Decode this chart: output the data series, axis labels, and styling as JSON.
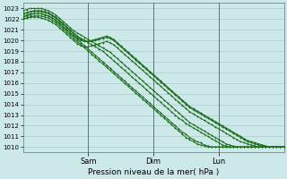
{
  "title": "",
  "xlabel": "Pression niveau de la mer( hPa )",
  "ylabel": "",
  "bg_color": "#cce8e8",
  "grid_color": "#aacccc",
  "line_color": "#1a6b1a",
  "ylim": [
    1009.5,
    1023.5
  ],
  "yticks": [
    1010,
    1011,
    1012,
    1013,
    1014,
    1015,
    1016,
    1017,
    1018,
    1019,
    1020,
    1021,
    1022,
    1023
  ],
  "day_labels": [
    "Sam",
    "Dim",
    "Lun"
  ],
  "day_positions": [
    0.25,
    0.5,
    0.75
  ],
  "n_points": 73,
  "lines": [
    [
      1022.0,
      1022.1,
      1022.2,
      1022.3,
      1022.3,
      1022.3,
      1022.2,
      1022.1,
      1021.9,
      1021.7,
      1021.4,
      1021.1,
      1020.8,
      1020.5,
      1020.2,
      1019.9,
      1019.6,
      1019.3,
      1019.0,
      1018.7,
      1018.4,
      1018.1,
      1017.8,
      1017.5,
      1017.2,
      1016.9,
      1016.6,
      1016.3,
      1016.0,
      1015.7,
      1015.4,
      1015.1,
      1014.8,
      1014.5,
      1014.2,
      1013.9,
      1013.6,
      1013.3,
      1013.0,
      1012.7,
      1012.4,
      1012.1,
      1011.8,
      1011.5,
      1011.2,
      1010.9,
      1010.7,
      1010.5,
      1010.3,
      1010.2,
      1010.1,
      1010.0,
      1010.0,
      1010.0,
      1010.0,
      1010.0,
      1010.0,
      1010.0,
      1010.0,
      1010.0,
      1010.0,
      1010.0,
      1010.0,
      1010.0,
      1010.0,
      1010.0,
      1010.0,
      1010.0,
      1010.0,
      1010.0,
      1010.0,
      1010.0,
      1010.0
    ],
    [
      1022.2,
      1022.3,
      1022.4,
      1022.5,
      1022.5,
      1022.5,
      1022.4,
      1022.3,
      1022.1,
      1021.9,
      1021.6,
      1021.3,
      1021.0,
      1020.7,
      1020.4,
      1020.1,
      1019.8,
      1019.5,
      1019.2,
      1018.9,
      1018.6,
      1018.3,
      1018.0,
      1017.7,
      1017.4,
      1017.1,
      1016.8,
      1016.5,
      1016.2,
      1015.9,
      1015.6,
      1015.3,
      1015.0,
      1014.7,
      1014.4,
      1014.1,
      1013.8,
      1013.5,
      1013.2,
      1012.9,
      1012.6,
      1012.3,
      1012.0,
      1011.7,
      1011.4,
      1011.2,
      1010.9,
      1010.7,
      1010.5,
      1010.4,
      1010.2,
      1010.1,
      1010.0,
      1010.0,
      1010.0,
      1010.0,
      1010.0,
      1010.0,
      1010.0,
      1010.0,
      1010.0,
      1010.0,
      1010.0,
      1010.0,
      1010.0,
      1010.0,
      1010.0,
      1010.0,
      1010.0,
      1010.0,
      1010.0,
      1010.0,
      1010.0
    ],
    [
      1022.5,
      1022.6,
      1022.7,
      1022.8,
      1022.8,
      1022.8,
      1022.7,
      1022.6,
      1022.4,
      1022.2,
      1021.9,
      1021.6,
      1021.3,
      1021.0,
      1020.7,
      1020.4,
      1020.2,
      1020.0,
      1019.8,
      1019.6,
      1019.4,
      1019.2,
      1019.0,
      1018.7,
      1018.4,
      1018.1,
      1017.8,
      1017.5,
      1017.2,
      1016.9,
      1016.6,
      1016.3,
      1016.0,
      1015.7,
      1015.4,
      1015.1,
      1014.8,
      1014.5,
      1014.2,
      1013.9,
      1013.6,
      1013.3,
      1013.0,
      1012.7,
      1012.5,
      1012.2,
      1012.0,
      1011.8,
      1011.6,
      1011.4,
      1011.2,
      1011.0,
      1010.8,
      1010.6,
      1010.4,
      1010.2,
      1010.1,
      1010.0,
      1010.0,
      1010.0,
      1010.0,
      1010.0,
      1010.0,
      1010.0,
      1010.0,
      1010.0,
      1010.0,
      1010.0,
      1010.0,
      1010.0,
      1010.0,
      1010.0,
      1010.0
    ],
    [
      1022.8,
      1022.9,
      1023.0,
      1023.0,
      1023.0,
      1023.0,
      1022.9,
      1022.8,
      1022.6,
      1022.4,
      1022.1,
      1021.8,
      1021.5,
      1021.2,
      1020.9,
      1020.7,
      1020.5,
      1020.3,
      1020.1,
      1019.9,
      1019.7,
      1019.5,
      1019.3,
      1019.1,
      1018.9,
      1018.6,
      1018.3,
      1018.0,
      1017.7,
      1017.4,
      1017.1,
      1016.8,
      1016.5,
      1016.2,
      1015.9,
      1015.6,
      1015.3,
      1015.0,
      1014.7,
      1014.4,
      1014.1,
      1013.8,
      1013.5,
      1013.2,
      1012.9,
      1012.6,
      1012.3,
      1012.1,
      1011.9,
      1011.7,
      1011.5,
      1011.3,
      1011.1,
      1010.9,
      1010.7,
      1010.5,
      1010.3,
      1010.2,
      1010.1,
      1010.0,
      1010.0,
      1010.0,
      1010.0,
      1010.0,
      1010.0,
      1010.0,
      1010.0,
      1010.0,
      1010.0,
      1010.0,
      1010.0,
      1010.0,
      1010.0
    ],
    [
      1022.5,
      1022.6,
      1022.7,
      1022.7,
      1022.7,
      1022.7,
      1022.6,
      1022.5,
      1022.3,
      1022.1,
      1021.8,
      1021.5,
      1021.2,
      1020.9,
      1020.6,
      1020.3,
      1020.1,
      1020.0,
      1019.9,
      1019.9,
      1020.0,
      1020.1,
      1020.2,
      1020.3,
      1020.2,
      1020.0,
      1019.7,
      1019.4,
      1019.1,
      1018.8,
      1018.5,
      1018.2,
      1017.9,
      1017.6,
      1017.3,
      1017.0,
      1016.7,
      1016.4,
      1016.1,
      1015.8,
      1015.5,
      1015.2,
      1014.9,
      1014.6,
      1014.3,
      1014.0,
      1013.7,
      1013.5,
      1013.3,
      1013.1,
      1012.9,
      1012.7,
      1012.5,
      1012.3,
      1012.1,
      1011.9,
      1011.7,
      1011.5,
      1011.3,
      1011.1,
      1010.9,
      1010.7,
      1010.5,
      1010.4,
      1010.3,
      1010.2,
      1010.1,
      1010.0,
      1010.0,
      1010.0,
      1010.0,
      1010.0,
      1010.0
    ],
    [
      1022.3,
      1022.4,
      1022.5,
      1022.5,
      1022.5,
      1022.5,
      1022.4,
      1022.3,
      1022.1,
      1021.9,
      1021.6,
      1021.3,
      1021.0,
      1020.7,
      1020.4,
      1020.2,
      1020.0,
      1019.9,
      1019.9,
      1020.0,
      1020.1,
      1020.2,
      1020.3,
      1020.4,
      1020.3,
      1020.1,
      1019.8,
      1019.5,
      1019.2,
      1018.9,
      1018.6,
      1018.3,
      1018.0,
      1017.7,
      1017.4,
      1017.1,
      1016.8,
      1016.5,
      1016.2,
      1015.9,
      1015.6,
      1015.3,
      1015.0,
      1014.7,
      1014.4,
      1014.1,
      1013.8,
      1013.6,
      1013.4,
      1013.2,
      1013.0,
      1012.8,
      1012.6,
      1012.4,
      1012.2,
      1012.0,
      1011.8,
      1011.6,
      1011.4,
      1011.2,
      1011.0,
      1010.8,
      1010.6,
      1010.5,
      1010.4,
      1010.3,
      1010.2,
      1010.1,
      1010.0,
      1010.0,
      1010.0,
      1010.0,
      1010.0
    ],
    [
      1022.0,
      1022.1,
      1022.2,
      1022.2,
      1022.2,
      1022.1,
      1022.0,
      1021.9,
      1021.7,
      1021.5,
      1021.2,
      1020.9,
      1020.6,
      1020.3,
      1020.0,
      1019.7,
      1019.5,
      1019.4,
      1019.4,
      1019.5,
      1019.6,
      1019.7,
      1019.8,
      1019.9,
      1019.8,
      1019.6,
      1019.3,
      1019.0,
      1018.7,
      1018.4,
      1018.1,
      1017.8,
      1017.5,
      1017.2,
      1016.9,
      1016.6,
      1016.3,
      1016.0,
      1015.7,
      1015.4,
      1015.1,
      1014.8,
      1014.5,
      1014.2,
      1013.9,
      1013.6,
      1013.3,
      1013.1,
      1012.9,
      1012.7,
      1012.5,
      1012.3,
      1012.1,
      1011.9,
      1011.7,
      1011.5,
      1011.3,
      1011.1,
      1010.9,
      1010.7,
      1010.5,
      1010.4,
      1010.3,
      1010.2,
      1010.1,
      1010.0,
      1010.0,
      1010.0,
      1010.0,
      1010.0,
      1010.0,
      1010.0,
      1010.0
    ]
  ]
}
